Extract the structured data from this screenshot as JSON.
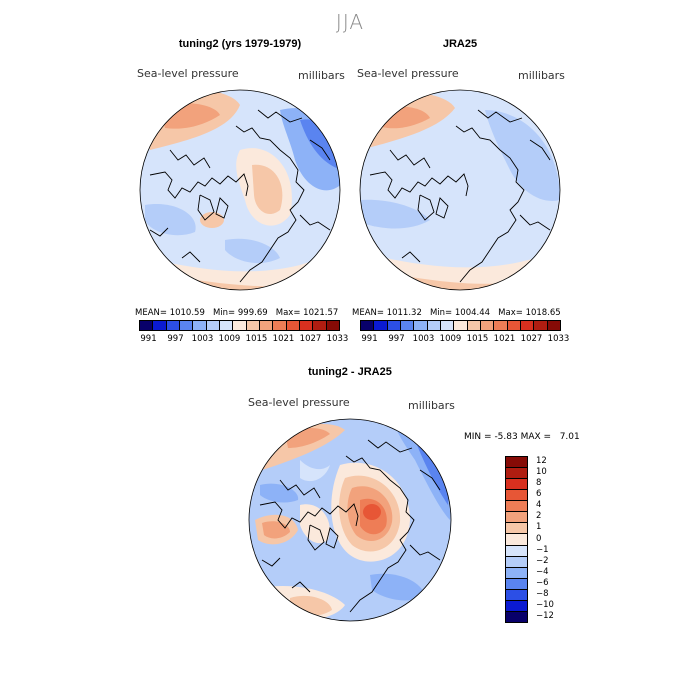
{
  "figure": {
    "season": "JJA"
  },
  "panels": [
    {
      "title": "tuning2 (yrs 1979-1979)",
      "variable": "Sea-level pressure",
      "units": "millibars",
      "stats": {
        "mean_label": "MEAN=",
        "mean": "1010.59",
        "min_label": "Min=",
        "min": "999.69",
        "max_label": "Max=",
        "max": "1021.57"
      }
    },
    {
      "title": "JRA25",
      "variable": "Sea-level pressure",
      "units": "millibars",
      "stats": {
        "mean_label": "MEAN=",
        "mean": "1011.32",
        "min_label": "Min=",
        "min": "1004.44",
        "max_label": "Max=",
        "max": "1018.65"
      }
    },
    {
      "title": "tuning2 - JRA25",
      "variable": "Sea-level pressure",
      "units": "millibars",
      "stats": {
        "min_label": "MIN =",
        "min": "-5.83",
        "max_label": "MAX =",
        "max": "7.01"
      }
    }
  ],
  "colorbar_abs": {
    "tick_labels": [
      "991",
      "997",
      "1003",
      "1009",
      "1015",
      "1021",
      "1027",
      "1033"
    ],
    "colors": [
      "#08006a",
      "#0b1ad2",
      "#2c4fe6",
      "#5a84f0",
      "#8db2f7",
      "#b4cdf9",
      "#d6e4fb",
      "#fbe9dc",
      "#f6c7a8",
      "#f2a27c",
      "#ee7d56",
      "#e75636",
      "#d8301f",
      "#b01d11",
      "#860b06"
    ]
  },
  "colorbar_diff": {
    "labels": [
      "12",
      "10",
      "8",
      "6",
      "4",
      "2",
      "1",
      "0",
      "−1",
      "−2",
      "−4",
      "−6",
      "−8",
      "−10",
      "−12"
    ],
    "colors": [
      "#860b06",
      "#b01d11",
      "#d8301f",
      "#e75636",
      "#ee7d56",
      "#f2a27c",
      "#f6c7a8",
      "#fbe9dc",
      "#d6e4fb",
      "#b4cdf9",
      "#8db2f7",
      "#5a84f0",
      "#2c4fe6",
      "#0b1ad2",
      "#08006a"
    ]
  },
  "map_colors": {
    "base_light": "#d6e4fb",
    "blue_mid": "#b4cdf9",
    "blue": "#8db2f7",
    "blue_dark": "#5a84f0",
    "blue_deep": "#2c4fe6",
    "peach": "#fbe9dc",
    "orange_light": "#f6c7a8",
    "orange": "#f2a27c",
    "orange_dark": "#ee7d56",
    "red": "#e75636",
    "red_dark": "#d8301f"
  }
}
